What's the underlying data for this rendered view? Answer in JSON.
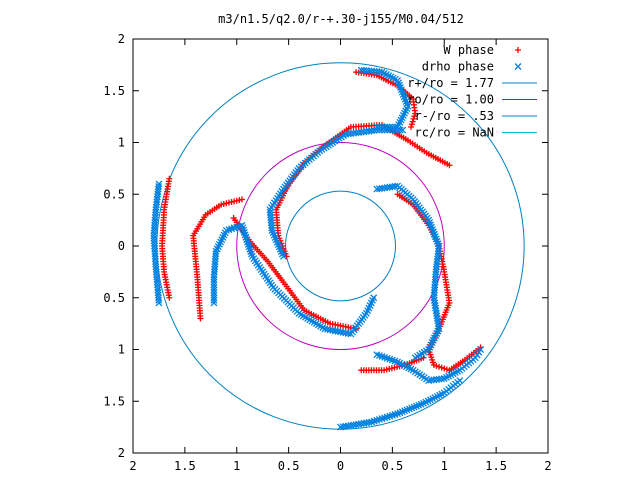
{
  "chart_data": {
    "type": "scatter",
    "title": "m3/n1.5/q2.0/r-+.30-j155/M0.04/512",
    "xlim": [
      -2,
      2
    ],
    "ylim": [
      -2,
      2
    ],
    "x_ticks": [
      -2,
      -1.5,
      -1,
      -0.5,
      0,
      0.5,
      1,
      1.5,
      2
    ],
    "y_ticks": [
      -2,
      -1.5,
      -1,
      -0.5,
      0,
      0.5,
      1,
      1.5,
      2
    ],
    "x_tick_labels": [
      "2",
      "1.5",
      "1",
      "0.5",
      "0",
      "0.5",
      "1",
      "1.5",
      "2"
    ],
    "y_tick_labels": [
      "2",
      "1.5",
      "1",
      "0.5",
      "0",
      "0.5",
      "1",
      "1.5",
      "2"
    ],
    "grid": false,
    "legend_position": "top-right",
    "legend": [
      {
        "label": "W phase",
        "kind": "marker",
        "marker": "+",
        "color": "#ff0000"
      },
      {
        "label": "drho phase",
        "kind": "marker",
        "marker": "x",
        "color": "#0080e0"
      },
      {
        "label": "r+/ro = 1.77",
        "kind": "line",
        "color": "#0080c0"
      },
      {
        "label": "ro/ro = 1.00",
        "kind": "line",
        "color": "#c000c0"
      },
      {
        "label": "r-/ro = .53",
        "kind": "line",
        "color": "#0080c0"
      },
      {
        "label": "rc/ro = NaN",
        "kind": "line",
        "color": "#00c0c0"
      }
    ],
    "circles": [
      {
        "name": "r+/ro = 1.77",
        "r": 1.77,
        "color": "#0080c0"
      },
      {
        "name": "ro/ro = 1.00",
        "r": 1.0,
        "color": "#c000c0"
      },
      {
        "name": "r-/ro = .53",
        "r": 0.53,
        "color": "#0080c0"
      }
    ],
    "series": [
      {
        "name": "W phase",
        "marker": "+",
        "color": "#ff0000",
        "arms": [
          [
            [
              -0.52,
              -0.1
            ],
            [
              -0.6,
              0.1
            ],
            [
              -0.62,
              0.35
            ],
            [
              -0.5,
              0.6
            ],
            [
              -0.35,
              0.8
            ],
            [
              -0.15,
              0.97
            ],
            [
              0.1,
              1.15
            ],
            [
              0.4,
              1.17
            ],
            [
              0.65,
              1.02
            ],
            [
              0.83,
              0.9
            ],
            [
              1.05,
              0.78
            ]
          ],
          [
            [
              -1.03,
              0.27
            ],
            [
              -0.87,
              0.04
            ],
            [
              -0.7,
              -0.15
            ],
            [
              -0.55,
              -0.35
            ],
            [
              -0.35,
              -0.62
            ],
            [
              -0.1,
              -0.75
            ],
            [
              0.15,
              -0.8
            ]
          ],
          [
            [
              -1.35,
              -0.7
            ],
            [
              -1.38,
              -0.3
            ],
            [
              -1.42,
              0.1
            ],
            [
              -1.3,
              0.3
            ],
            [
              -1.15,
              0.4
            ],
            [
              -0.95,
              0.45
            ]
          ],
          [
            [
              0.55,
              0.5
            ],
            [
              0.7,
              0.4
            ],
            [
              0.85,
              0.2
            ],
            [
              0.95,
              0.0
            ],
            [
              1.0,
              -0.25
            ],
            [
              1.05,
              -0.55
            ],
            [
              0.95,
              -0.8
            ],
            [
              0.85,
              -1.0
            ],
            [
              0.9,
              -1.15
            ],
            [
              1.05,
              -1.2
            ],
            [
              1.2,
              -1.1
            ],
            [
              1.35,
              -0.98
            ]
          ],
          [
            [
              0.2,
              -1.2
            ],
            [
              0.42,
              -1.2
            ],
            [
              0.62,
              -1.15
            ],
            [
              0.8,
              -1.08
            ]
          ],
          [
            [
              0.15,
              1.68
            ],
            [
              0.35,
              1.65
            ],
            [
              0.55,
              1.55
            ],
            [
              0.7,
              1.42
            ],
            [
              0.72,
              1.28
            ],
            [
              0.68,
              1.15
            ]
          ],
          [
            [
              -1.65,
              0.65
            ],
            [
              -1.7,
              0.35
            ],
            [
              -1.72,
              0.0
            ],
            [
              -1.7,
              -0.25
            ],
            [
              -1.65,
              -0.5
            ]
          ]
        ]
      },
      {
        "name": "drho phase",
        "marker": "x",
        "color": "#0080e0",
        "arms": [
          [
            [
              -0.55,
              -0.1
            ],
            [
              -0.66,
              0.15
            ],
            [
              -0.68,
              0.35
            ],
            [
              -0.55,
              0.55
            ],
            [
              -0.4,
              0.75
            ],
            [
              -0.2,
              0.92
            ],
            [
              0.05,
              1.08
            ],
            [
              0.35,
              1.12
            ],
            [
              0.6,
              1.12
            ]
          ],
          [
            [
              -1.22,
              -0.55
            ],
            [
              -1.22,
              -0.3
            ],
            [
              -1.2,
              -0.05
            ],
            [
              -1.1,
              0.15
            ],
            [
              -0.95,
              0.2
            ],
            [
              -0.85,
              -0.1
            ],
            [
              -0.65,
              -0.4
            ],
            [
              -0.4,
              -0.65
            ],
            [
              -0.15,
              -0.8
            ],
            [
              0.1,
              -0.85
            ],
            [
              0.25,
              -0.65
            ],
            [
              0.32,
              -0.5
            ]
          ],
          [
            [
              -1.75,
              -0.55
            ],
            [
              -1.78,
              -0.2
            ],
            [
              -1.8,
              0.1
            ],
            [
              -1.78,
              0.35
            ],
            [
              -1.75,
              0.6
            ]
          ],
          [
            [
              0.35,
              0.55
            ],
            [
              0.55,
              0.58
            ],
            [
              0.7,
              0.45
            ],
            [
              0.85,
              0.25
            ],
            [
              0.95,
              0.0
            ],
            [
              0.92,
              -0.25
            ],
            [
              0.9,
              -0.5
            ],
            [
              0.95,
              -0.8
            ],
            [
              0.85,
              -1.0
            ],
            [
              0.72,
              -1.08
            ]
          ],
          [
            [
              0.35,
              -1.05
            ],
            [
              0.55,
              -1.12
            ],
            [
              0.7,
              -1.2
            ],
            [
              0.85,
              -1.3
            ],
            [
              1.0,
              -1.28
            ],
            [
              1.15,
              -1.2
            ],
            [
              1.3,
              -1.08
            ],
            [
              1.35,
              -1.0
            ]
          ],
          [
            [
              0.0,
              -1.75
            ],
            [
              0.3,
              -1.7
            ],
            [
              0.55,
              -1.62
            ],
            [
              0.8,
              -1.52
            ],
            [
              1.0,
              -1.42
            ],
            [
              1.15,
              -1.3
            ]
          ],
          [
            [
              0.2,
              1.7
            ],
            [
              0.4,
              1.68
            ],
            [
              0.55,
              1.6
            ],
            [
              0.65,
              1.35
            ],
            [
              0.55,
              1.15
            ],
            [
              0.35,
              1.15
            ]
          ]
        ]
      }
    ]
  }
}
